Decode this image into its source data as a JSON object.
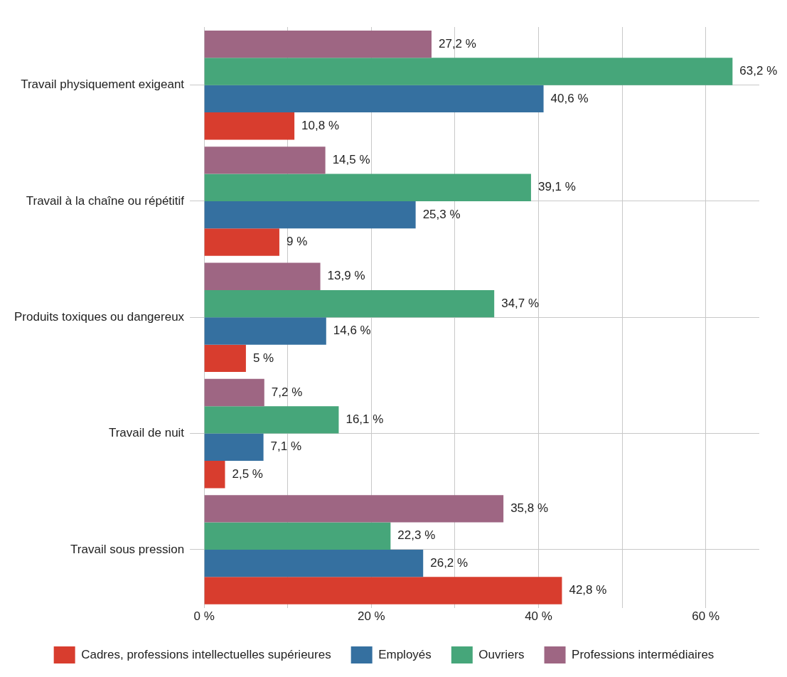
{
  "chart_data": {
    "type": "bar",
    "orientation": "horizontal",
    "categories": [
      "Travail physiquement exigeant",
      "Travail à la chaîne ou répétitif",
      "Produits toxiques ou dangereux",
      "Travail de nuit",
      "Travail sous pression"
    ],
    "series": [
      {
        "name": "Cadres, professions intellectuelles supérieures",
        "color": "#d83d2e",
        "values": [
          10.8,
          9,
          5,
          2.5,
          42.8
        ],
        "value_labels": [
          "10,8 %",
          "9 %",
          "5 %",
          "2,5 %",
          "42,8 %"
        ]
      },
      {
        "name": "Employés",
        "color": "#3570a0",
        "values": [
          40.6,
          25.3,
          14.6,
          7.1,
          26.2
        ],
        "value_labels": [
          "40,6 %",
          "25,3 %",
          "14,6 %",
          "7,1 %",
          "26,2 %"
        ]
      },
      {
        "name": "Ouvriers",
        "color": "#46a67a",
        "values": [
          63.2,
          39.1,
          34.7,
          16.1,
          22.3
        ],
        "value_labels": [
          "63,2 %",
          "39,1 %",
          "34,7 %",
          "16,1 %",
          "22,3 %"
        ]
      },
      {
        "name": "Professions intermédiaires",
        "color": "#9e6683",
        "values": [
          27.2,
          14.5,
          13.9,
          7.2,
          35.8
        ],
        "value_labels": [
          "27,2 %",
          "14,5 %",
          "13,9 %",
          "7,2 %",
          "35,8 %"
        ]
      }
    ],
    "xlim": [
      0,
      66.4
    ],
    "xticks": [
      {
        "value": 0,
        "label": "0 %"
      },
      {
        "value": 10,
        "label": null
      },
      {
        "value": 20,
        "label": "20 %"
      },
      {
        "value": 30,
        "label": null
      },
      {
        "value": 40,
        "label": "40 %"
      },
      {
        "value": 50,
        "label": null
      },
      {
        "value": 60,
        "label": "60 %"
      }
    ],
    "grid": true,
    "legend": "bottom"
  }
}
